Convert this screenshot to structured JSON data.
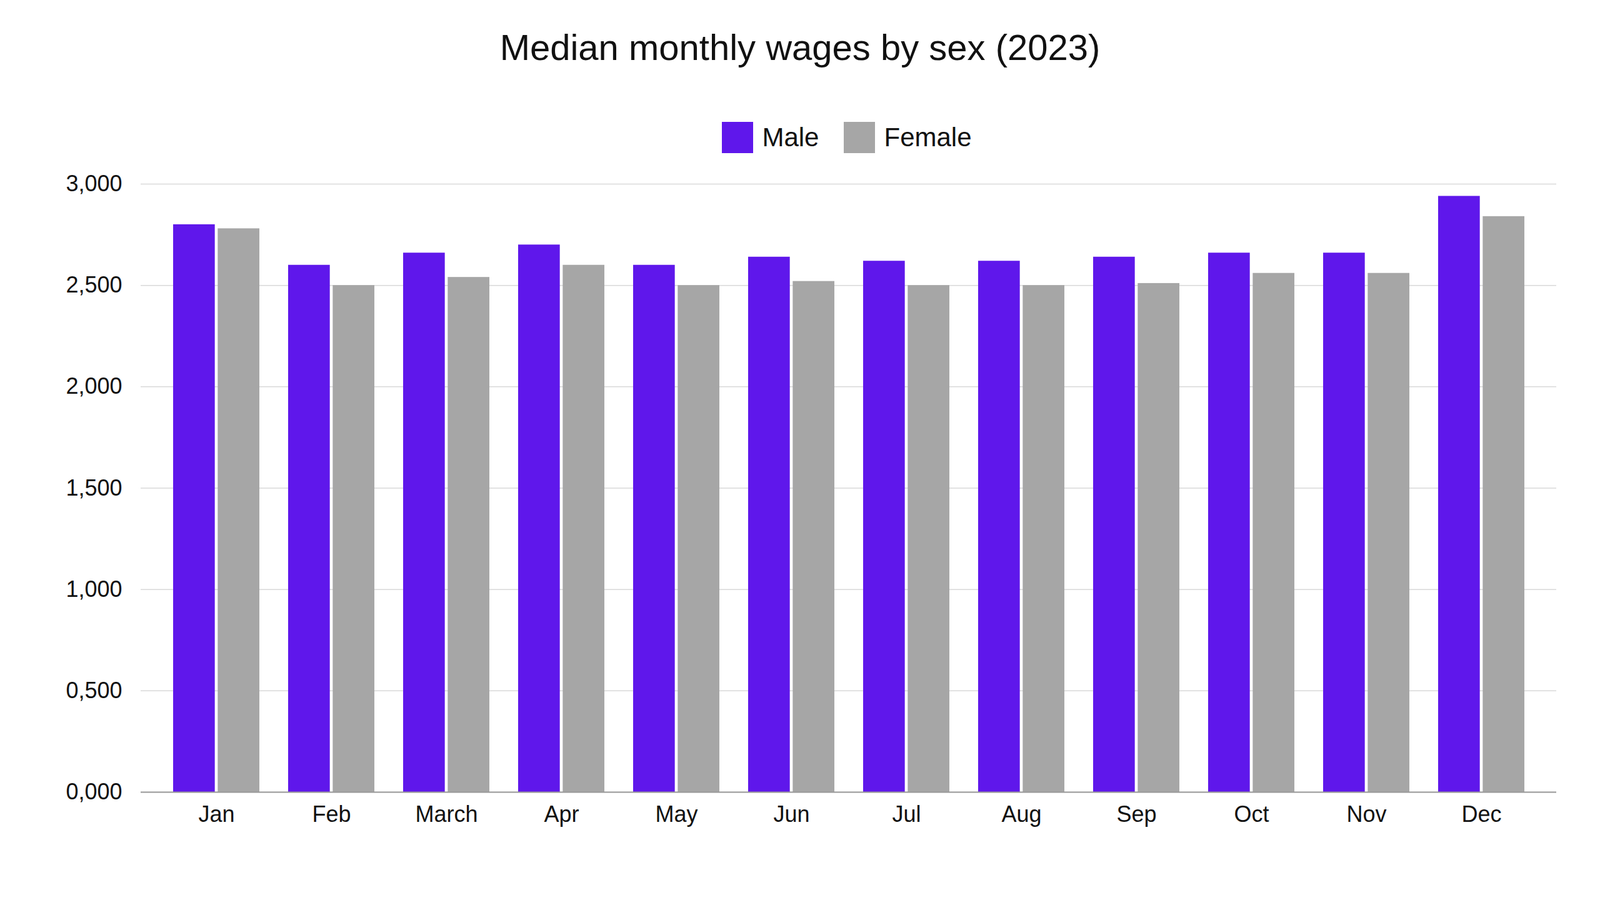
{
  "chart_data": {
    "type": "bar",
    "title": "Median monthly wages by sex (2023)",
    "categories": [
      "Jan",
      "Feb",
      "March",
      "Apr",
      "May",
      "Jun",
      "Jul",
      "Aug",
      "Sep",
      "Oct",
      "Nov",
      "Dec"
    ],
    "series": [
      {
        "name": "Male",
        "color": "#5f17eb",
        "values": [
          2800,
          2600,
          2660,
          2700,
          2600,
          2640,
          2620,
          2620,
          2640,
          2660,
          2660,
          2940
        ]
      },
      {
        "name": "Female",
        "color": "#a6a6a6",
        "values": [
          2780,
          2500,
          2540,
          2600,
          2500,
          2520,
          2500,
          2500,
          2510,
          2560,
          2560,
          2840
        ]
      }
    ],
    "ylim": [
      0,
      3000
    ],
    "yticks": [
      {
        "value": 0,
        "label": "0,000"
      },
      {
        "value": 500,
        "label": "0,500"
      },
      {
        "value": 1000,
        "label": "1,000"
      },
      {
        "value": 1500,
        "label": "1,500"
      },
      {
        "value": 2000,
        "label": "2,000"
      },
      {
        "value": 2500,
        "label": "2,500"
      },
      {
        "value": 3000,
        "label": "3,000"
      }
    ],
    "grid": true,
    "legend": "top"
  }
}
